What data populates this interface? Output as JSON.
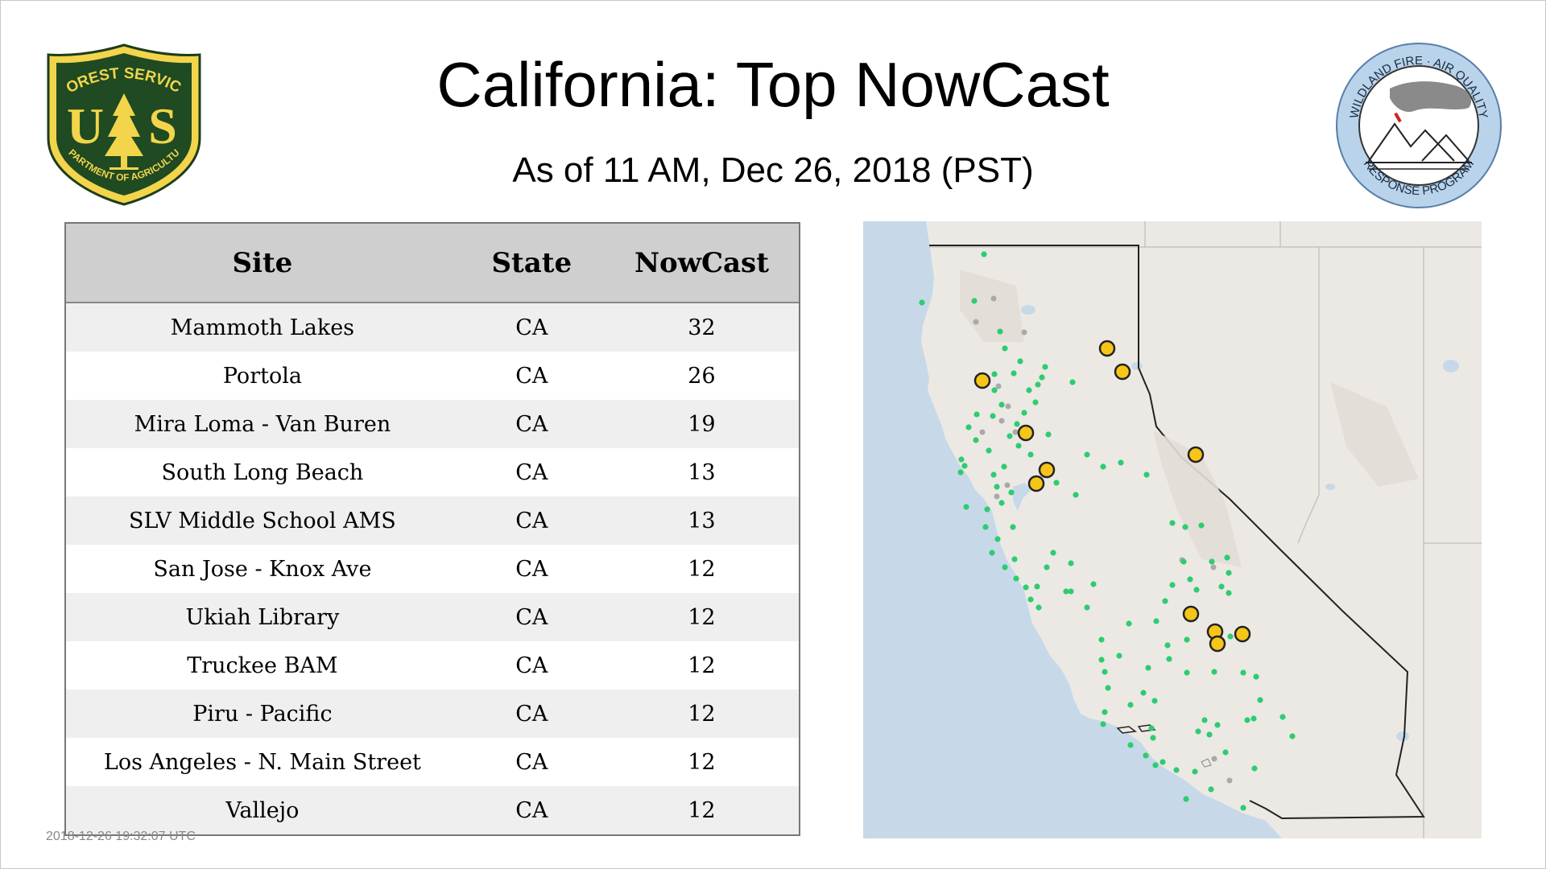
{
  "header": {
    "title": "California: Top NowCast",
    "subtitle": "As of 11 AM, Dec 26, 2018 (PST)"
  },
  "logos": {
    "left": {
      "icon": "usfs-shield-logo",
      "top_text": "FOREST SERVICE",
      "left_letter": "U",
      "right_letter": "S",
      "bottom_text": "DEPARTMENT OF AGRICULTURE"
    },
    "right": {
      "icon": "wildland-fire-air-quality-logo",
      "top_text": "WILDLAND FIRE · AIR QUALITY",
      "bottom_text": "RESPONSE PROGRAM"
    }
  },
  "table": {
    "headers": [
      "Site",
      "State",
      "NowCast"
    ],
    "rows": [
      [
        "Mammoth Lakes",
        "CA",
        "32"
      ],
      [
        "Portola",
        "CA",
        "26"
      ],
      [
        "Mira Loma - Van Buren",
        "CA",
        "19"
      ],
      [
        "South Long Beach",
        "CA",
        "13"
      ],
      [
        "SLV Middle School AMS",
        "CA",
        "13"
      ],
      [
        "San Jose - Knox Ave",
        "CA",
        "12"
      ],
      [
        "Ukiah Library",
        "CA",
        "12"
      ],
      [
        "Truckee BAM",
        "CA",
        "12"
      ],
      [
        "Piru - Pacific",
        "CA",
        "12"
      ],
      [
        "Los Angeles - N. Main Street",
        "CA",
        "12"
      ],
      [
        "Vallejo",
        "CA",
        "12"
      ]
    ]
  },
  "footer": {
    "timestamp": "2018-12-26 19:32:07 UTC"
  },
  "map": {
    "colors": {
      "ocean": "#c7d9e8",
      "land": "#ece9e4",
      "top_site": "#f5c518",
      "monitor": "#2ecc71",
      "inactive": "#a9a9a9"
    }
  }
}
